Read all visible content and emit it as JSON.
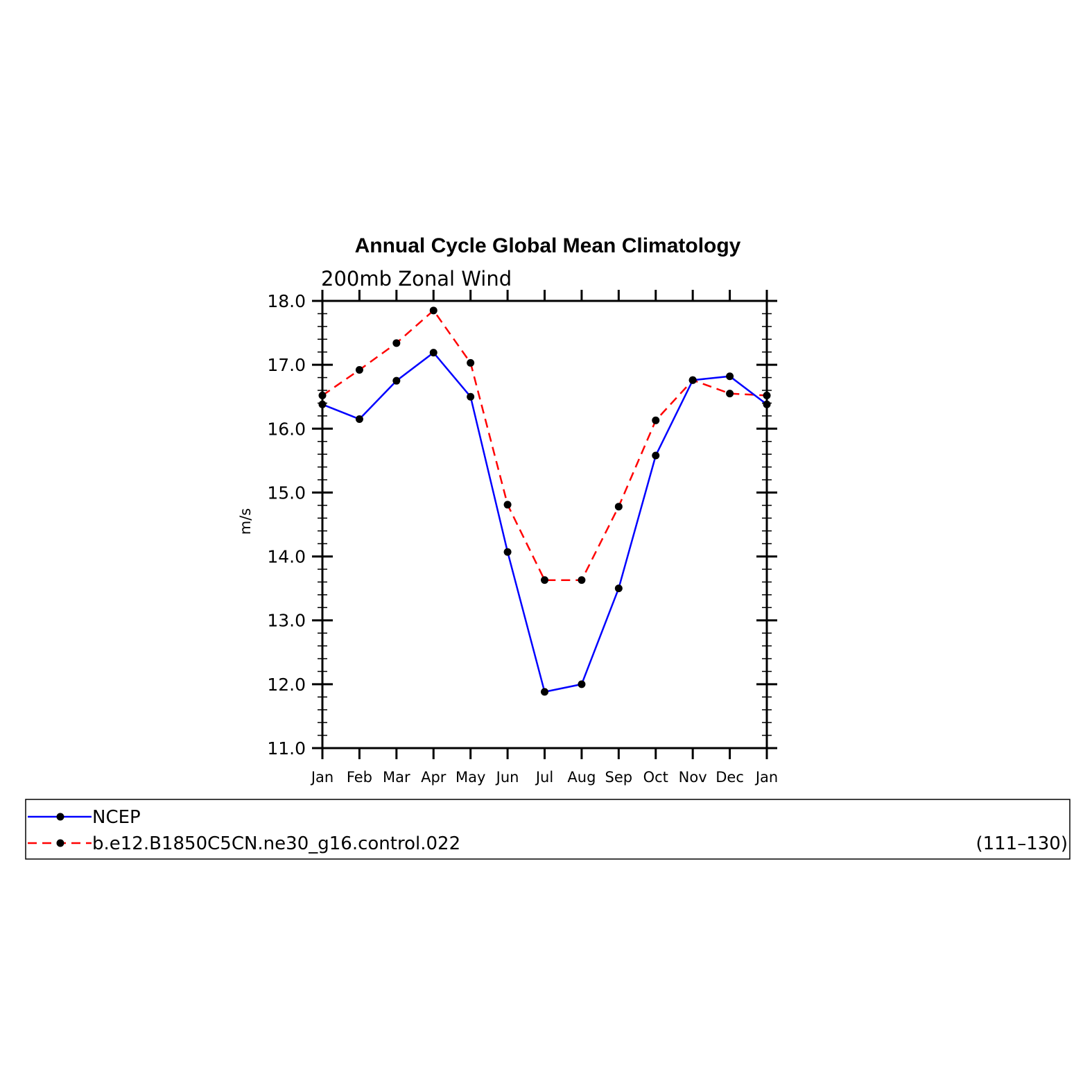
{
  "chart_data": {
    "type": "line",
    "title": "Annual Cycle Global Mean Climatology",
    "subtitle": "200mb Zonal Wind",
    "xlabel": "",
    "ylabel": "m/s",
    "ylim": [
      11.0,
      18.0
    ],
    "yticks": [
      "11.0",
      "12.0",
      "13.0",
      "14.0",
      "15.0",
      "16.0",
      "17.0",
      "18.0"
    ],
    "categories": [
      "Jan",
      "Feb",
      "Mar",
      "Apr",
      "May",
      "Jun",
      "Jul",
      "Aug",
      "Sep",
      "Oct",
      "Nov",
      "Dec",
      "Jan"
    ],
    "grid": false,
    "legend_position": "bottom",
    "series": [
      {
        "name": "NCEP",
        "color": "#0000ff",
        "line_style": "solid",
        "marker": "filled-circle",
        "values": [
          16.38,
          16.15,
          16.75,
          17.19,
          16.5,
          14.07,
          11.88,
          12.0,
          13.5,
          15.58,
          16.76,
          16.82,
          16.38
        ]
      },
      {
        "name": "b.e12.B1850C5CN.ne30_g16.control.022",
        "color": "#ff0000",
        "line_style": "dashed",
        "marker": "filled-circle",
        "values": [
          16.52,
          16.92,
          17.34,
          17.85,
          17.03,
          14.81,
          13.63,
          13.63,
          14.78,
          16.13,
          16.76,
          16.55,
          16.52
        ]
      }
    ],
    "legend_note": "(111–130)"
  }
}
